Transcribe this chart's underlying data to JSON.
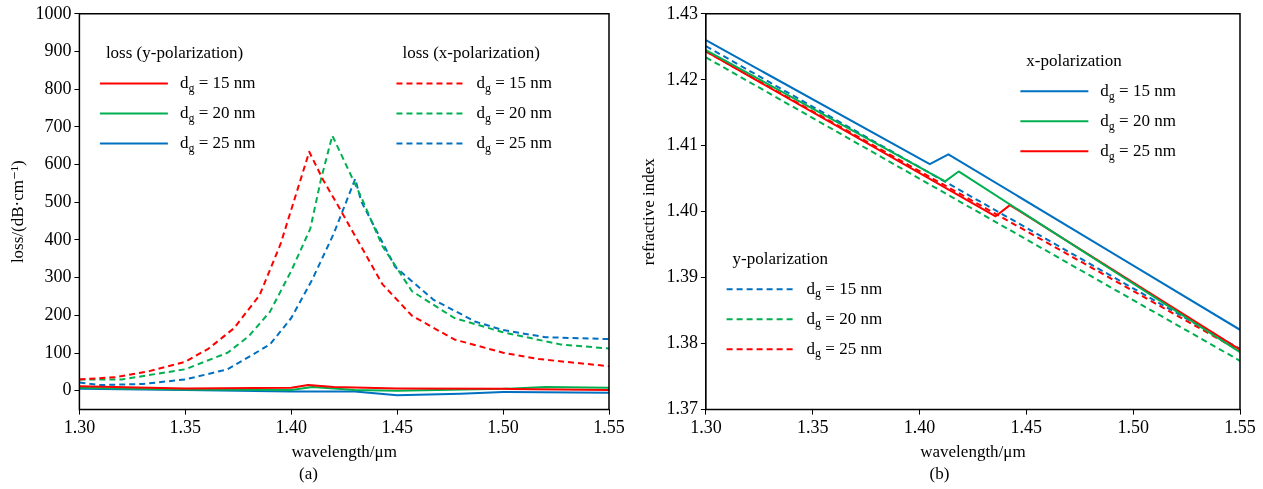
{
  "chart_data": [
    {
      "type": "line",
      "title": "(a)",
      "xlabel": "wavelength/μm",
      "ylabel": "loss/(dB·cm⁻¹)",
      "xlim": [
        1.3,
        1.55
      ],
      "xticks": [
        {
          "value": 1.3,
          "label": "1.30"
        },
        1.35,
        {
          "value": 1.4,
          "label": "1.40"
        },
        1.45,
        {
          "value": 1.5,
          "label": "1.50"
        },
        1.55
      ],
      "ylim": [
        -50,
        1000
      ],
      "yticks": [
        0,
        100,
        200,
        300,
        400,
        500,
        600,
        700,
        800,
        900,
        1000
      ],
      "grid": false,
      "legend": "top",
      "marker": "none",
      "annotations": [
        "loss (y-polarization)",
        "loss (x-polarization)"
      ],
      "series": [
        {
          "name": "d$_{g}$ = 15 nm",
          "color": "#ff0000",
          "line_style": "solid",
          "x": [
            1.3,
            1.35,
            1.4,
            1.408,
            1.42,
            1.45,
            1.5,
            1.55
          ],
          "values": [
            12,
            6,
            8,
            15,
            10,
            6,
            5,
            2
          ]
        },
        {
          "name": "d$_{g}$ = 20 nm",
          "color": "#00b050",
          "line_style": "solid",
          "x": [
            1.3,
            1.35,
            1.4,
            1.41,
            1.43,
            1.45,
            1.5,
            1.52,
            1.55
          ],
          "values": [
            8,
            3,
            2,
            10,
            2,
            0,
            5,
            10,
            8
          ]
        },
        {
          "name": "d$_{g}$ = 25 nm",
          "color": "#0070c0",
          "line_style": "solid",
          "x": [
            1.3,
            1.35,
            1.4,
            1.43,
            1.45,
            1.48,
            1.5,
            1.55
          ],
          "values": [
            5,
            2,
            -2,
            -2,
            -12,
            -8,
            -3,
            -5
          ]
        },
        {
          "name": "d$_{g}$ = 15 nm",
          "color": "#ff0000",
          "line_style": "dashed",
          "x": [
            1.3,
            1.317,
            1.333,
            1.35,
            1.361,
            1.373,
            1.385,
            1.395,
            1.4085,
            1.415,
            1.423,
            1.443,
            1.457,
            1.477,
            1.5,
            1.517,
            1.55
          ],
          "values": [
            30,
            36,
            52,
            77,
            112,
            166,
            253,
            390,
            634,
            560,
            482,
            283,
            199,
            136,
            101,
            84,
            65
          ]
        },
        {
          "name": "d$_{g}$ = 20 nm",
          "color": "#00b050",
          "line_style": "dashed",
          "x": [
            1.3,
            1.32,
            1.35,
            1.37,
            1.38,
            1.39,
            1.4,
            1.409,
            1.414,
            1.4194,
            1.433,
            1.443,
            1.457,
            1.477,
            1.5,
            1.527,
            1.55
          ],
          "values": [
            30,
            30,
            57,
            101,
            145,
            210,
            318,
            430,
            560,
            677,
            514,
            384,
            264,
            193,
            155,
            123,
            112
          ]
        },
        {
          "name": "d$_{g}$ = 25 nm",
          "color": "#0070c0",
          "line_style": "dashed",
          "x": [
            1.3,
            1.31,
            1.33,
            1.35,
            1.37,
            1.39,
            1.4,
            1.41,
            1.42,
            1.4302,
            1.433,
            1.449,
            1.467,
            1.487,
            1.5,
            1.52,
            1.55
          ],
          "values": [
            22,
            15,
            18,
            30,
            57,
            123,
            193,
            296,
            416,
            562,
            503,
            329,
            242,
            183,
            161,
            142,
            137
          ]
        }
      ]
    },
    {
      "type": "line",
      "title": "(b)",
      "xlabel": "wavelength/μm",
      "ylabel": "refractive index",
      "xlim": [
        1.3,
        1.55
      ],
      "xticks": [
        {
          "value": 1.3,
          "label": "1.30"
        },
        1.35,
        {
          "value": 1.4,
          "label": "1.40"
        },
        1.45,
        {
          "value": 1.5,
          "label": "1.50"
        },
        1.55
      ],
      "ylim": [
        1.37,
        1.43
      ],
      "yticks": [
        1.37,
        1.38,
        1.39,
        {
          "value": 1.4,
          "label": "1.40"
        },
        1.41,
        1.42,
        1.43
      ],
      "grid": false,
      "legend": "bottom left",
      "marker": "none",
      "annotations": [
        "x-polarization",
        "y-polarization"
      ],
      "series": [
        {
          "name": "d$_{g}$ = 15 nm",
          "color": "#0070c0",
          "line_style": "solid",
          "x": [
            1.3,
            1.4048,
            1.4135,
            1.55
          ],
          "values": [
            1.426,
            1.4072,
            1.4087,
            1.3821
          ]
        },
        {
          "name": "d$_{g}$ = 20 nm",
          "color": "#00b050",
          "line_style": "solid",
          "x": [
            1.3,
            1.412,
            1.4183,
            1.55
          ],
          "values": [
            1.4245,
            1.4046,
            1.4061,
            1.3787
          ]
        },
        {
          "name": "d$_{g}$ = 25 nm",
          "color": "#ff0000",
          "line_style": "solid",
          "x": [
            1.3,
            1.4356,
            1.4423,
            1.55
          ],
          "values": [
            1.4243,
            1.3993,
            1.401,
            1.3791
          ]
        },
        {
          "name": "d$_{g}$ = 15 nm",
          "color": "#0070c0",
          "line_style": "dashed",
          "x": [
            1.3,
            1.55
          ],
          "values": [
            1.4251,
            1.3792
          ]
        },
        {
          "name": "d$_{g}$ = 20 nm",
          "color": "#00b050",
          "line_style": "dashed",
          "x": [
            1.3,
            1.55
          ],
          "values": [
            1.4234,
            1.3774
          ]
        },
        {
          "name": "d$_{g}$ = 25 nm",
          "color": "#ff0000",
          "line_style": "dashed",
          "x": [
            1.3,
            1.55
          ],
          "values": [
            1.4243,
            1.3789
          ]
        }
      ]
    }
  ]
}
